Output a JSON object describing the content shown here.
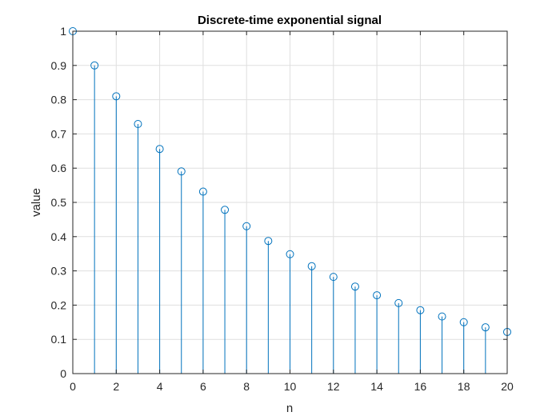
{
  "chart_data": {
    "type": "stem",
    "title": "Discrete-time exponential signal",
    "xlabel": "n",
    "ylabel": "value",
    "xlim": [
      0,
      20
    ],
    "ylim": [
      0,
      1
    ],
    "xticks": [
      0,
      2,
      4,
      6,
      8,
      10,
      12,
      14,
      16,
      18,
      20
    ],
    "yticks": [
      0,
      0.1,
      0.2,
      0.3,
      0.4,
      0.5,
      0.6,
      0.7,
      0.8,
      0.9,
      1
    ],
    "grid": true,
    "series": [
      {
        "x": [
          0,
          1,
          2,
          3,
          4,
          5,
          6,
          7,
          8,
          9,
          10,
          11,
          12,
          13,
          14,
          15,
          16,
          17,
          18,
          19,
          20
        ],
        "values": [
          1,
          0.9,
          0.81,
          0.729,
          0.6561,
          0.5905,
          0.5314,
          0.4783,
          0.4305,
          0.3874,
          0.3487,
          0.3138,
          0.2824,
          0.2542,
          0.2288,
          0.2059,
          0.1853,
          0.1668,
          0.1501,
          0.1351,
          0.1216
        ]
      }
    ],
    "colors": {
      "stem": "#0072BD",
      "marker": "#0072BD"
    }
  }
}
